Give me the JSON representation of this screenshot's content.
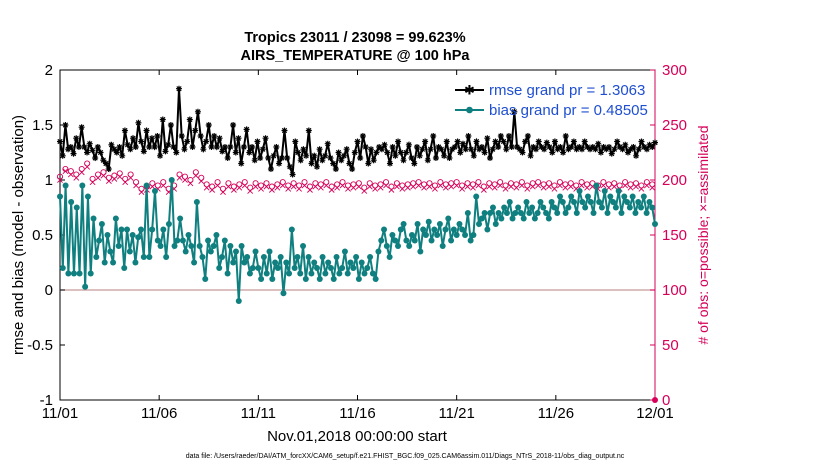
{
  "chart_data": {
    "type": "line",
    "title_line1": "Tropics 23011 / 23098 = 99.623%",
    "title_line2": "AIRS_TEMPERATURE @ 100 hPa",
    "ylabel": "rmse and bias (model - observation)",
    "ylabel_right": "# of obs: o=possible; ×=assimilated",
    "xlabel": "Nov.01,2018 00:00:00 start",
    "footer": "data file: /Users/raeder/DAI/ATM_forcXX/CAM6_setup/f.e21.FHIST_BGC.f09_025.CAM6assim.011/Diags_NTrS_2018-11/obs_diag_output.nc",
    "xlim": [
      0,
      30
    ],
    "ylim": [
      -1,
      2
    ],
    "ylim_right": [
      0,
      300
    ],
    "x_ticks": [
      0,
      5,
      10,
      15,
      20,
      25,
      30
    ],
    "x_tick_labels": [
      "11/01",
      "11/06",
      "11/11",
      "11/16",
      "11/21",
      "11/26",
      "12/01"
    ],
    "y_ticks": [
      -1,
      -0.5,
      0,
      0.5,
      1,
      1.5,
      2
    ],
    "y_tick_labels": [
      "-1",
      "-0.5",
      "0",
      "0.5",
      "1",
      "1.5",
      "2"
    ],
    "y_right_ticks": [
      0,
      50,
      100,
      150,
      200,
      250,
      300
    ],
    "y_right_tick_labels": [
      "0",
      "50",
      "100",
      "150",
      "200",
      "250",
      "300"
    ],
    "legend_position": "top-right",
    "legend": [
      {
        "label": "rmse grand pr = 1.3063",
        "series": "rmse"
      },
      {
        "label": "bias grand pr = 0.48505",
        "series": "bias"
      }
    ],
    "colors": {
      "rmse": "#000000",
      "bias": "#0f7f7f",
      "obs": "#d6005a",
      "zero_line": "#c79b9b"
    },
    "series": [
      {
        "name": "rmse",
        "values": [
          1.35,
          1.22,
          1.5,
          1.28,
          1.3,
          1.24,
          1.38,
          1.3,
          1.48,
          1.3,
          1.25,
          1.33,
          1.27,
          1.2,
          1.3,
          1.25,
          1.18,
          1.15,
          1.1,
          1.32,
          1.28,
          1.25,
          1.3,
          1.22,
          1.45,
          1.32,
          1.28,
          1.38,
          1.3,
          1.52,
          1.35,
          1.26,
          1.45,
          1.3,
          1.38,
          1.3,
          1.4,
          1.22,
          1.55,
          1.26,
          1.32,
          1.5,
          1.3,
          1.25,
          1.83,
          1.4,
          1.28,
          1.35,
          1.55,
          1.3,
          1.45,
          1.62,
          1.4,
          1.28,
          1.35,
          1.5,
          1.3,
          1.4,
          1.3,
          1.38,
          1.26,
          1.3,
          1.2,
          1.3,
          1.5,
          1.25,
          1.38,
          1.15,
          1.3,
          1.46,
          1.25,
          1.3,
          1.18,
          1.35,
          1.2,
          1.28,
          1.38,
          1.2,
          1.1,
          1.22,
          1.3,
          1.15,
          1.2,
          1.45,
          1.2,
          1.12,
          1.05,
          1.35,
          1.25,
          1.18,
          1.28,
          1.22,
          1.45,
          1.15,
          1.22,
          1.12,
          1.28,
          1.18,
          1.22,
          1.33,
          1.2,
          1.15,
          1.1,
          1.25,
          1.18,
          1.22,
          1.28,
          1.15,
          1.1,
          1.25,
          1.35,
          1.2,
          1.4,
          1.3,
          1.15,
          1.28,
          1.18,
          1.25,
          1.3,
          1.28,
          1.32,
          1.25,
          1.15,
          1.3,
          1.22,
          1.35,
          1.25,
          1.18,
          1.25,
          1.32,
          1.2,
          1.15,
          1.3,
          1.22,
          1.28,
          1.35,
          1.18,
          1.28,
          1.4,
          1.2,
          1.3,
          1.28,
          1.22,
          1.35,
          1.2,
          1.28,
          1.3,
          1.35,
          1.25,
          1.33,
          1.28,
          1.4,
          1.28,
          1.22,
          1.35,
          1.28,
          1.3,
          1.25,
          1.38,
          1.2,
          1.28,
          1.35,
          1.3,
          1.4,
          1.35,
          1.28,
          1.4,
          1.3,
          1.62,
          1.3,
          1.28,
          1.25,
          1.35,
          1.4,
          1.22,
          1.3,
          1.28,
          1.35,
          1.3,
          1.28,
          1.34,
          1.3,
          1.25,
          1.35,
          1.28,
          1.3,
          1.25,
          1.4,
          1.28,
          1.3,
          1.35,
          1.28,
          1.3,
          1.28,
          1.35,
          1.3,
          1.28,
          1.3,
          1.28,
          1.33,
          1.25,
          1.3,
          1.28,
          1.3,
          1.24,
          1.28,
          1.35,
          1.3,
          1.28,
          1.32,
          1.25,
          1.28,
          1.3,
          1.22,
          1.28,
          1.35,
          1.3,
          1.28,
          1.32,
          1.3,
          1.34
        ]
      },
      {
        "name": "bias",
        "values": [
          0.85,
          0.2,
          0.95,
          0.15,
          0.8,
          0.15,
          0.75,
          0.15,
          0.95,
          0.03,
          0.85,
          0.15,
          0.65,
          0.3,
          0.45,
          0.6,
          0.25,
          0.5,
          0.35,
          0.25,
          0.65,
          0.4,
          0.55,
          0.2,
          0.55,
          0.35,
          0.5,
          0.25,
          0.48,
          0.55,
          0.3,
          0.95,
          0.3,
          0.55,
          0.9,
          0.45,
          0.4,
          0.55,
          0.3,
          0.6,
          1.0,
          0.4,
          0.45,
          0.65,
          0.45,
          0.35,
          0.5,
          0.4,
          0.25,
          0.8,
          0.4,
          0.3,
          0.1,
          0.45,
          0.35,
          0.4,
          0.5,
          0.2,
          0.3,
          0.45,
          0.15,
          0.4,
          0.25,
          0.35,
          -0.1,
          0.4,
          0.25,
          0.3,
          0.15,
          0.2,
          0.35,
          0.2,
          0.1,
          0.3,
          0.15,
          0.35,
          0.1,
          0.25,
          0.2,
          0.3,
          -0.03,
          0.25,
          0.15,
          0.55,
          0.2,
          0.3,
          0.15,
          0.4,
          0.1,
          0.3,
          0.15,
          0.25,
          0.2,
          0.1,
          0.3,
          0.15,
          0.25,
          0.2,
          0.1,
          0.3,
          0.15,
          0.2,
          0.35,
          0.15,
          0.25,
          0.2,
          0.3,
          0.1,
          0.25,
          0.15,
          0.2,
          0.3,
          0.15,
          0.1,
          0.35,
          0.45,
          0.55,
          0.4,
          0.3,
          0.5,
          0.45,
          0.4,
          0.55,
          0.6,
          0.45,
          0.4,
          0.5,
          0.45,
          0.6,
          0.35,
          0.55,
          0.5,
          0.62,
          0.45,
          0.55,
          0.5,
          0.6,
          0.4,
          0.55,
          0.65,
          0.45,
          0.55,
          0.5,
          0.6,
          0.55,
          0.5,
          0.7,
          0.45,
          0.5,
          0.85,
          0.6,
          0.65,
          0.7,
          0.55,
          0.7,
          0.75,
          0.6,
          0.7,
          0.65,
          0.75,
          0.7,
          0.8,
          0.65,
          0.7,
          0.75,
          0.7,
          0.65,
          0.8,
          0.7,
          0.75,
          0.65,
          0.7,
          0.8,
          0.75,
          0.7,
          0.65,
          0.8,
          0.75,
          0.7,
          0.85,
          0.8,
          0.7,
          0.75,
          0.85,
          0.8,
          0.7,
          0.9,
          0.8,
          0.75,
          0.85,
          0.8,
          0.7,
          0.95,
          0.8,
          0.75,
          0.9,
          0.7,
          0.85,
          0.8,
          0.75,
          0.9,
          0.7,
          0.85,
          0.8,
          0.75,
          0.85,
          0.7,
          0.8,
          0.75,
          0.85,
          0.7,
          0.8,
          0.75,
          0.6
        ]
      },
      {
        "name": "obs_possible",
        "values": [
          203,
          198,
          210,
          195,
          208,
          200,
          205,
          193,
          210,
          199,
          215,
          196,
          201,
          198,
          205,
          192,
          207,
          193,
          202,
          195,
          204,
          190,
          206,
          196,
          201,
          194,
          205,
          200,
          198,
          207,
          192,
          203,
          194,
          200,
          197,
          205,
          195,
          203,
          198,
          201,
          192,
          206,
          195,
          199,
          205,
          197,
          203,
          191,
          200,
          195,
          207,
          193,
          202,
          198,
          196,
          204,
          194,
          200,
          198,
          203,
          192,
          201,
          197,
          205,
          194,
          200,
          196,
          203,
          198,
          201,
          193,
          204,
          197,
          199,
          195,
          201,
          197,
          200,
          194,
          203,
          196,
          200,
          198,
          202,
          195,
          199,
          197,
          201,
          195,
          200,
          198,
          203,
          194,
          200,
          197,
          202,
          196,
          199,
          198,
          201,
          194,
          203,
          196,
          200,
          198,
          202,
          195,
          200,
          196,
          199,
          197,
          201,
          193,
          202,
          197,
          200,
          195,
          203,
          196,
          199,
          198,
          201,
          194,
          200,
          197,
          202,
          195,
          199,
          196,
          203,
          197,
          200,
          198,
          201,
          196,
          199,
          197,
          202,
          195,
          201,
          198,
          200,
          196,
          203,
          197,
          199,
          198,
          201,
          195,
          200,
          197,
          202,
          196,
          199,
          198,
          201,
          194,
          200,
          197,
          203,
          196,
          199,
          198,
          201,
          195,
          200,
          197,
          202,
          196,
          201,
          198,
          200,
          195,
          203,
          197,
          199,
          198,
          201,
          196,
          200,
          197,
          202,
          195,
          199,
          198,
          201,
          196,
          200,
          197,
          203,
          195,
          199,
          198,
          201,
          196,
          200,
          197,
          202,
          195,
          199,
          198,
          201,
          196,
          200,
          197,
          203,
          195,
          199,
          198,
          201,
          196,
          200,
          197,
          202,
          195,
          201,
          198,
          200,
          196,
          203
        ]
      },
      {
        "name": "obs_assimilated",
        "values": [
          200,
          195,
          208,
          192,
          205,
          197,
          202,
          190,
          207,
          196,
          212,
          193,
          198,
          195,
          202,
          189,
          204,
          190,
          199,
          192,
          201,
          187,
          203,
          193,
          198,
          191,
          202,
          197,
          195,
          204,
          189,
          200,
          191,
          197,
          194,
          202,
          192,
          200,
          195,
          198,
          189,
          203,
          192,
          196,
          202,
          194,
          200,
          188,
          197,
          192,
          204,
          190,
          199,
          195,
          193,
          201,
          191,
          197,
          195,
          200,
          189,
          198,
          194,
          202,
          191,
          197,
          193,
          200,
          195,
          198,
          190,
          201,
          194,
          196,
          192,
          198,
          194,
          197,
          191,
          200,
          193,
          197,
          195,
          199,
          192,
          196,
          194,
          198,
          192,
          197,
          195,
          200,
          191,
          197,
          194,
          199,
          193,
          196,
          195,
          198,
          191,
          200,
          193,
          197,
          195,
          199,
          192,
          197,
          193,
          196,
          194,
          198,
          190,
          199,
          194,
          197,
          192,
          200,
          193,
          196,
          195,
          198,
          191,
          197,
          194,
          199,
          192,
          196,
          193,
          200,
          194,
          197,
          195,
          198,
          193,
          196,
          194,
          199,
          192,
          198,
          195,
          197,
          193,
          200,
          194,
          196,
          195,
          198,
          192,
          197,
          194,
          199,
          193,
          196,
          195,
          198,
          191,
          197,
          194,
          200,
          193,
          196,
          195,
          198,
          192,
          197,
          194,
          199,
          193,
          198,
          195,
          197,
          192,
          200,
          194,
          196,
          195,
          198,
          193,
          197,
          194,
          199,
          192,
          196,
          195,
          198,
          193,
          197,
          194,
          200,
          192,
          196,
          195,
          198,
          193,
          197,
          194,
          199,
          192,
          196,
          195,
          198,
          193,
          197,
          194,
          200,
          192,
          196,
          195,
          198,
          193,
          197,
          194,
          199,
          192,
          198,
          195,
          197,
          193,
          200
        ]
      }
    ]
  }
}
